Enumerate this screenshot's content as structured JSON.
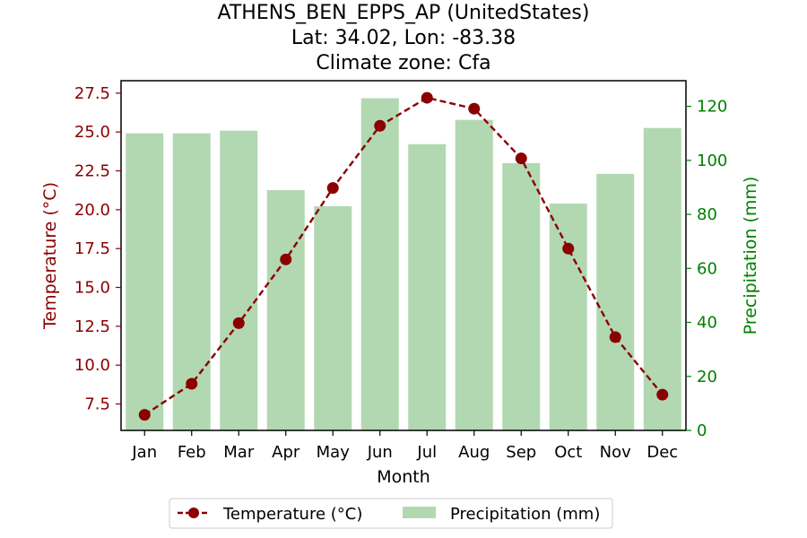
{
  "chart_data": {
    "type": "bar+line",
    "title_lines": [
      "ATHENS_BEN_EPPS_AP (UnitedStates)",
      "Lat: 34.02, Lon: -83.38",
      "Climate zone: Cfa"
    ],
    "xlabel": "Month",
    "ylabel_left": "Temperature (°C)",
    "ylabel_right": "Precipitation (mm)",
    "categories": [
      "Jan",
      "Feb",
      "Mar",
      "Apr",
      "May",
      "Jun",
      "Jul",
      "Aug",
      "Sep",
      "Oct",
      "Nov",
      "Dec"
    ],
    "series": [
      {
        "name": "Temperature (°C)",
        "type": "line",
        "axis": "left",
        "values": [
          6.8,
          8.8,
          12.7,
          16.8,
          21.4,
          25.4,
          27.2,
          26.5,
          23.3,
          17.5,
          11.8,
          8.1
        ]
      },
      {
        "name": "Precipitation (mm)",
        "type": "bar",
        "axis": "right",
        "values": [
          110,
          110,
          111,
          89,
          83,
          123,
          106,
          115,
          99,
          84,
          95,
          112
        ]
      }
    ],
    "ylim_left": [
      5.8,
      28.3
    ],
    "ylim_right": [
      0,
      129.5
    ],
    "yticks_left": [
      "7.5",
      "10.0",
      "12.5",
      "15.0",
      "17.5",
      "20.0",
      "22.5",
      "25.0",
      "27.5"
    ],
    "yticks_right": [
      "0",
      "20",
      "40",
      "60",
      "80",
      "100",
      "120"
    ],
    "legend_position": "bottom-center",
    "colors": {
      "temperature_line": "#8b0000",
      "temperature_marker": "#8b0000",
      "left_axis": "#8b0000",
      "precipitation_bar": "#b2d8b2",
      "right_axis": "#008000"
    }
  }
}
